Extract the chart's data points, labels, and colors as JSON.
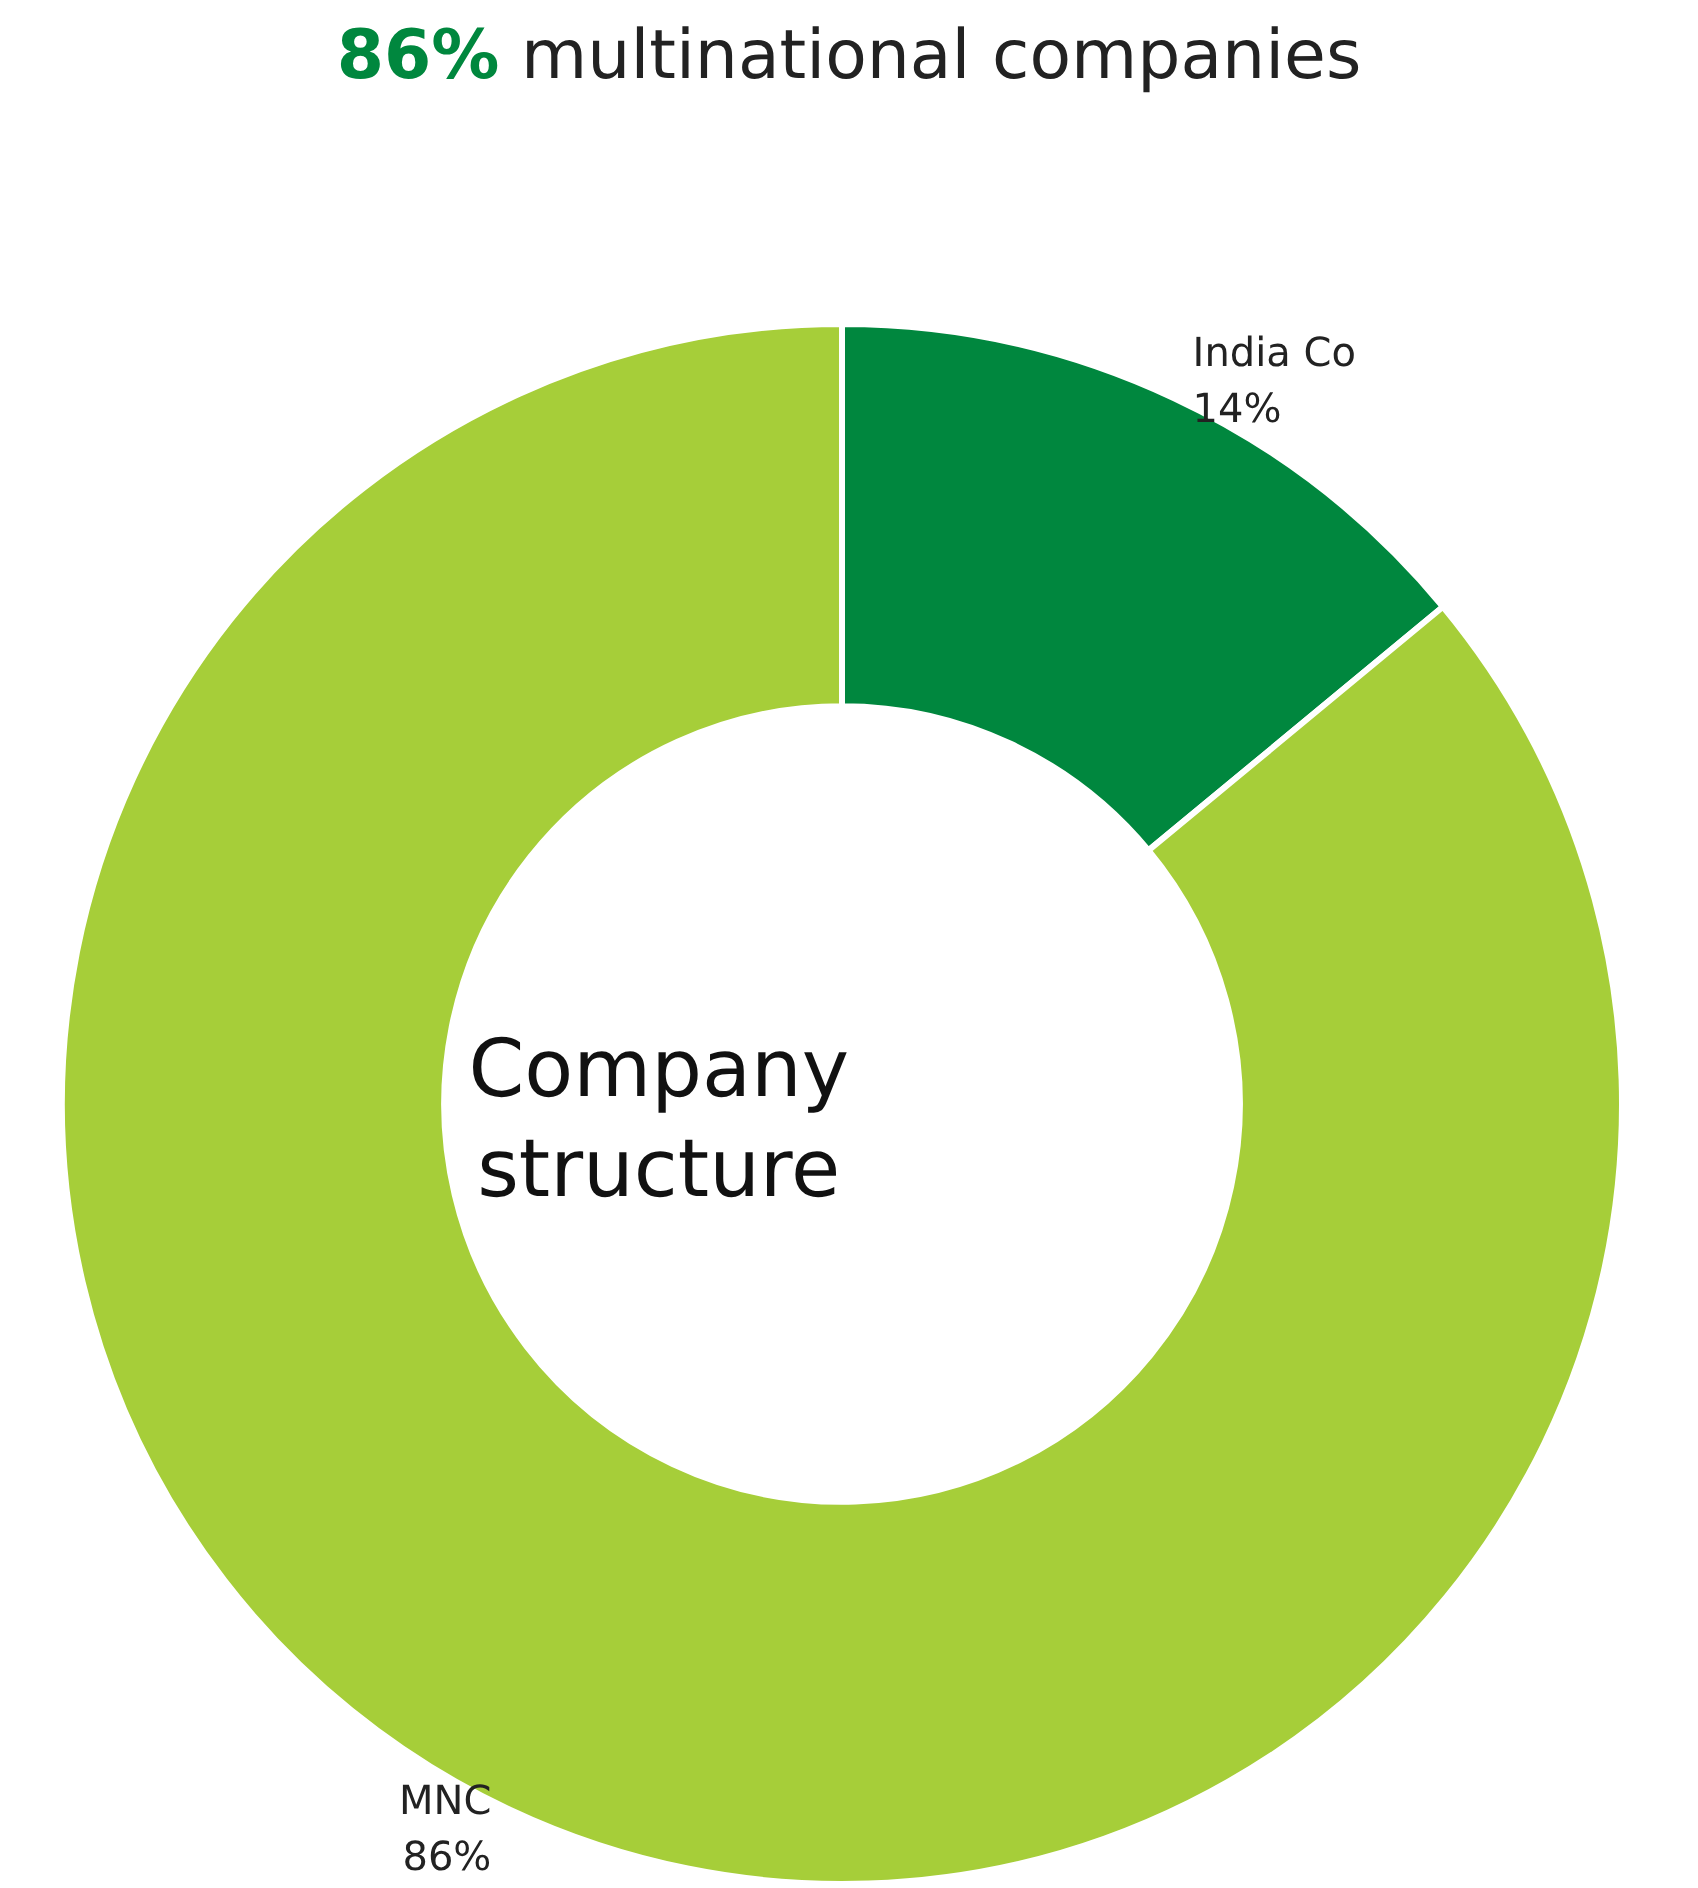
{
  "chart_data": {
    "type": "donut",
    "title": "86% multinational companies",
    "annotations": [
      "Company structure"
    ],
    "categories": [
      "India Co",
      "MNC"
    ],
    "values": [
      14,
      86
    ],
    "colors": [
      "#00873e",
      "#a6ce39"
    ],
    "value_labels": [
      "14%",
      "86%"
    ],
    "legend": false
  }
}
